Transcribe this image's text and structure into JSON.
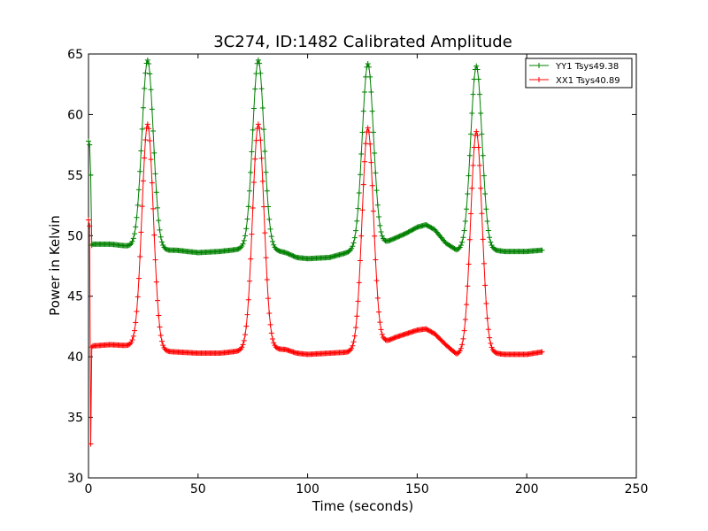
{
  "chart_data": {
    "type": "line",
    "title": "3C274, ID:1482 Calibrated Amplitude",
    "xlabel": "Time (seconds)",
    "ylabel": "Power in Kelvin",
    "xlim": [
      0,
      250
    ],
    "ylim": [
      30,
      65
    ],
    "xticks": [
      0,
      50,
      100,
      150,
      200,
      250
    ],
    "yticks": [
      30,
      35,
      40,
      45,
      50,
      55,
      60,
      65
    ],
    "grid": false,
    "legend_position": "top-right",
    "marker": "+",
    "series": [
      {
        "name": "YY1 Tsys49.38",
        "color": "#008000",
        "initial": [
          [
            0.0,
            57.8
          ],
          [
            0.5,
            57.5
          ],
          [
            1.0,
            55.0
          ],
          [
            1.5,
            49.2
          ]
        ],
        "baseline": [
          [
            2,
            49.3
          ],
          [
            10,
            49.3
          ],
          [
            20,
            49.1
          ],
          [
            30,
            48.8
          ],
          [
            40,
            48.8
          ],
          [
            50,
            48.6
          ],
          [
            60,
            48.7
          ],
          [
            70,
            48.9
          ],
          [
            80,
            49.0
          ],
          [
            90,
            48.6
          ],
          [
            95,
            48.2
          ],
          [
            100,
            48.1
          ],
          [
            110,
            48.2
          ],
          [
            120,
            48.7
          ],
          [
            125,
            48.9
          ],
          [
            130,
            48.9
          ],
          [
            135,
            49.4
          ],
          [
            140,
            49.8
          ],
          [
            145,
            50.2
          ],
          [
            150,
            50.7
          ],
          [
            154,
            50.9
          ],
          [
            158,
            50.5
          ],
          [
            163,
            49.4
          ],
          [
            168,
            48.8
          ],
          [
            172,
            48.8
          ],
          [
            175,
            48.8
          ],
          [
            180,
            48.8
          ],
          [
            185,
            48.8
          ],
          [
            190,
            48.7
          ],
          [
            200,
            48.7
          ],
          [
            207,
            48.8
          ]
        ],
        "peaks": [
          {
            "center": 27,
            "peak": 64.5,
            "sigma": 2.6
          },
          {
            "center": 77.5,
            "peak": 64.5,
            "sigma": 2.6
          },
          {
            "center": 127.5,
            "peak": 64.2,
            "sigma": 2.6
          },
          {
            "center": 177,
            "peak": 64.0,
            "sigma": 2.6
          }
        ]
      },
      {
        "name": "XX1 Tsys40.89",
        "color": "#ff0000",
        "initial": [
          [
            0.0,
            51.3
          ],
          [
            0.5,
            50.8
          ],
          [
            1.0,
            32.8
          ],
          [
            1.5,
            40.8
          ]
        ],
        "baseline": [
          [
            2,
            40.9
          ],
          [
            10,
            41.0
          ],
          [
            20,
            40.9
          ],
          [
            30,
            40.5
          ],
          [
            40,
            40.4
          ],
          [
            50,
            40.3
          ],
          [
            60,
            40.3
          ],
          [
            70,
            40.5
          ],
          [
            80,
            40.7
          ],
          [
            90,
            40.6
          ],
          [
            95,
            40.3
          ],
          [
            100,
            40.2
          ],
          [
            110,
            40.3
          ],
          [
            120,
            40.4
          ],
          [
            125,
            40.5
          ],
          [
            130,
            40.4
          ],
          [
            135,
            41.2
          ],
          [
            140,
            41.6
          ],
          [
            145,
            41.9
          ],
          [
            150,
            42.2
          ],
          [
            154,
            42.3
          ],
          [
            158,
            41.9
          ],
          [
            163,
            41.0
          ],
          [
            168,
            40.2
          ],
          [
            172,
            40.2
          ],
          [
            175,
            40.3
          ],
          [
            180,
            40.3
          ],
          [
            185,
            40.3
          ],
          [
            190,
            40.2
          ],
          [
            200,
            40.2
          ],
          [
            207,
            40.4
          ]
        ],
        "peaks": [
          {
            "center": 27,
            "peak": 59.2,
            "sigma": 2.6
          },
          {
            "center": 77.5,
            "peak": 59.2,
            "sigma": 2.6
          },
          {
            "center": 127.5,
            "peak": 58.9,
            "sigma": 2.6
          },
          {
            "center": 177,
            "peak": 58.6,
            "sigma": 2.6
          }
        ]
      }
    ]
  }
}
